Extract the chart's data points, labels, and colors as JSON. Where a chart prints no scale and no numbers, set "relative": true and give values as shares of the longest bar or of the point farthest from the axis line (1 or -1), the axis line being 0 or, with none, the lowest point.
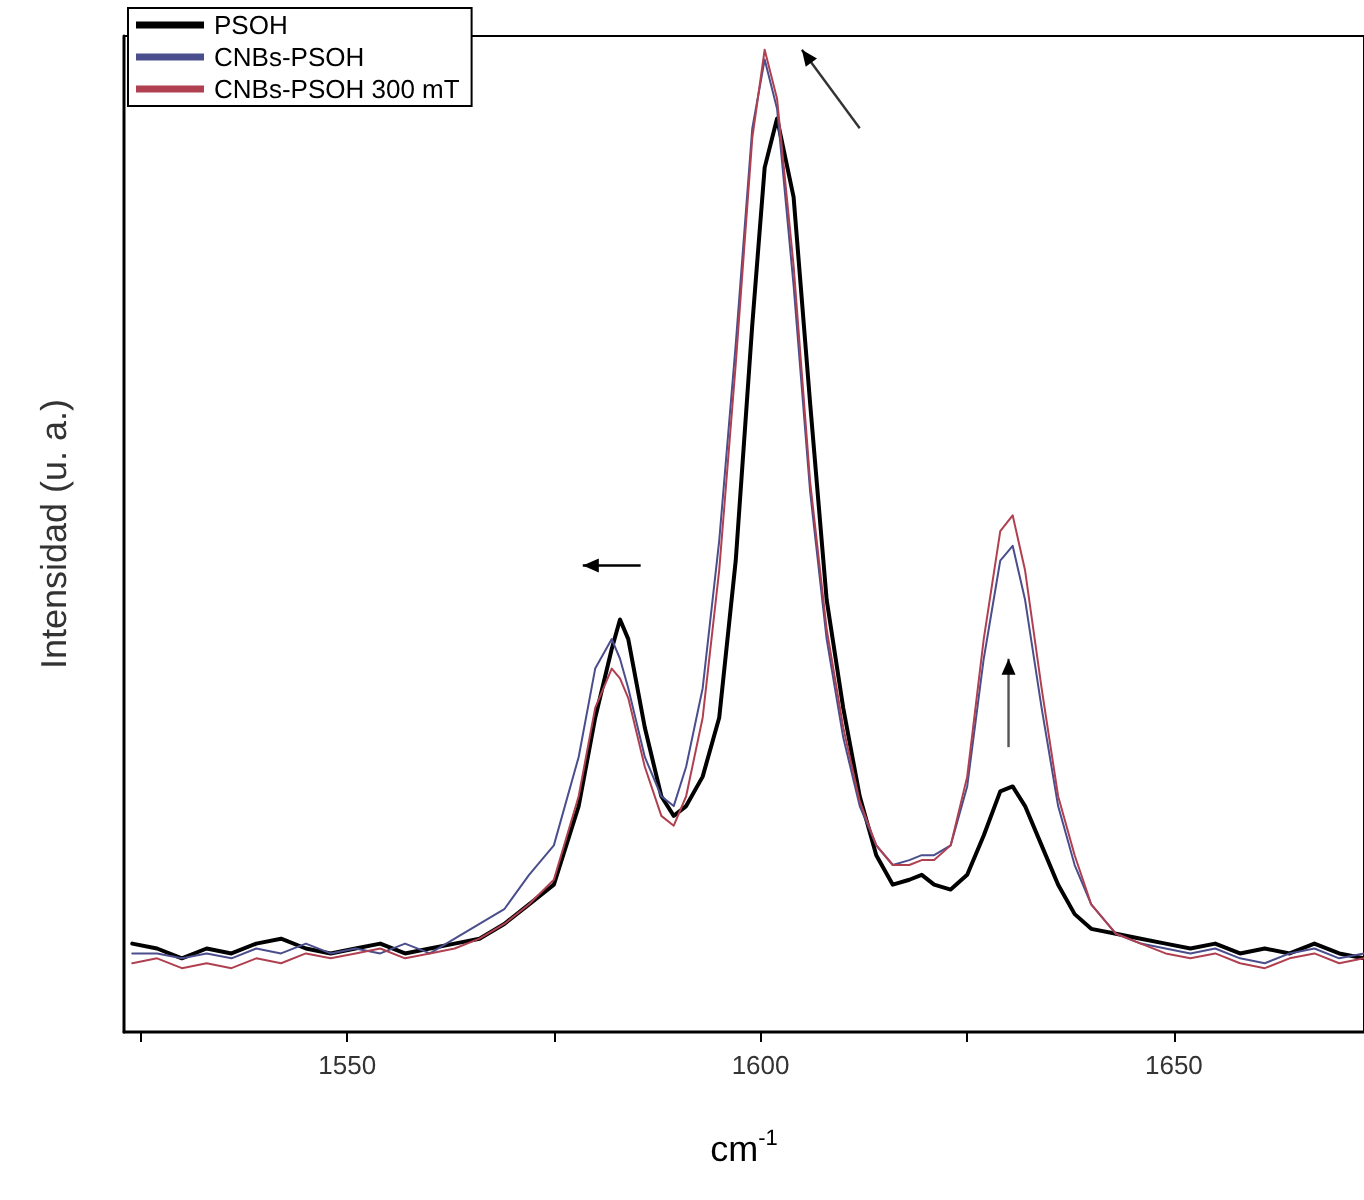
{
  "chart_data": {
    "type": "line",
    "relative": true,
    "xlabel": "cm$^{-1}$",
    "ylabel": "Intensidad (u. a.)",
    "xlim": [
      1523,
      1673
    ],
    "xticks": [
      {
        "value": 1525,
        "label": null
      },
      1550,
      {
        "value": 1575,
        "label": null
      },
      1600,
      {
        "value": 1625,
        "label": null
      },
      1650
    ],
    "legend": "top left",
    "grid": false,
    "marker": "none",
    "line_style": "solid",
    "x": [
      1524,
      1527,
      1530,
      1533,
      1536,
      1539,
      1542,
      1545,
      1548,
      1551,
      1554,
      1557,
      1560,
      1563,
      1566,
      1569,
      1572,
      1575,
      1578,
      1580,
      1582,
      1583,
      1584,
      1586,
      1588,
      1589.5,
      1591,
      1593,
      1595,
      1597,
      1599,
      1600.5,
      1602,
      1604,
      1606,
      1608,
      1610,
      1612,
      1614,
      1616,
      1618,
      1619.5,
      1621,
      1623,
      1625,
      1627,
      1629,
      1630.5,
      1632,
      1634,
      1636,
      1638,
      1640,
      1643,
      1646,
      1649,
      1652,
      1655,
      1658,
      1661,
      1664,
      1667,
      1670,
      1673
    ],
    "series": [
      {
        "name": "PSOH",
        "color": "#000000",
        "values": [
          0.09,
          0.085,
          0.075,
          0.085,
          0.08,
          0.09,
          0.095,
          0.085,
          0.08,
          0.085,
          0.09,
          0.08,
          0.085,
          0.09,
          0.095,
          0.11,
          0.13,
          0.15,
          0.23,
          0.32,
          0.39,
          0.42,
          0.4,
          0.31,
          0.24,
          0.22,
          0.23,
          0.26,
          0.32,
          0.48,
          0.72,
          0.88,
          0.93,
          0.85,
          0.64,
          0.44,
          0.33,
          0.24,
          0.18,
          0.15,
          0.155,
          0.16,
          0.15,
          0.145,
          0.16,
          0.2,
          0.245,
          0.25,
          0.23,
          0.19,
          0.15,
          0.12,
          0.105,
          0.1,
          0.095,
          0.09,
          0.085,
          0.09,
          0.08,
          0.085,
          0.08,
          0.09,
          0.08,
          0.075
        ]
      },
      {
        "name": "CNBs-PSOH",
        "color": "#4a4e8c",
        "values": [
          0.08,
          0.08,
          0.075,
          0.08,
          0.075,
          0.085,
          0.08,
          0.09,
          0.08,
          0.085,
          0.08,
          0.09,
          0.08,
          0.095,
          0.11,
          0.125,
          0.16,
          0.19,
          0.28,
          0.37,
          0.4,
          0.38,
          0.35,
          0.28,
          0.24,
          0.23,
          0.27,
          0.35,
          0.5,
          0.7,
          0.92,
          0.99,
          0.94,
          0.76,
          0.55,
          0.4,
          0.3,
          0.23,
          0.19,
          0.17,
          0.175,
          0.18,
          0.18,
          0.19,
          0.25,
          0.38,
          0.48,
          0.495,
          0.44,
          0.33,
          0.23,
          0.17,
          0.13,
          0.1,
          0.09,
          0.085,
          0.08,
          0.085,
          0.075,
          0.07,
          0.08,
          0.085,
          0.075,
          0.08
        ]
      },
      {
        "name": "CNBs-PSOH 300 mT",
        "color": "#b04050",
        "values": [
          0.07,
          0.075,
          0.065,
          0.07,
          0.065,
          0.075,
          0.07,
          0.08,
          0.075,
          0.08,
          0.085,
          0.075,
          0.08,
          0.085,
          0.095,
          0.11,
          0.13,
          0.155,
          0.24,
          0.33,
          0.37,
          0.36,
          0.34,
          0.27,
          0.22,
          0.21,
          0.24,
          0.32,
          0.47,
          0.68,
          0.91,
          1.0,
          0.95,
          0.78,
          0.56,
          0.41,
          0.31,
          0.235,
          0.19,
          0.17,
          0.17,
          0.175,
          0.175,
          0.19,
          0.26,
          0.4,
          0.51,
          0.526,
          0.47,
          0.35,
          0.24,
          0.18,
          0.13,
          0.1,
          0.09,
          0.08,
          0.075,
          0.08,
          0.07,
          0.065,
          0.075,
          0.08,
          0.07,
          0.075
        ]
      }
    ]
  }
}
